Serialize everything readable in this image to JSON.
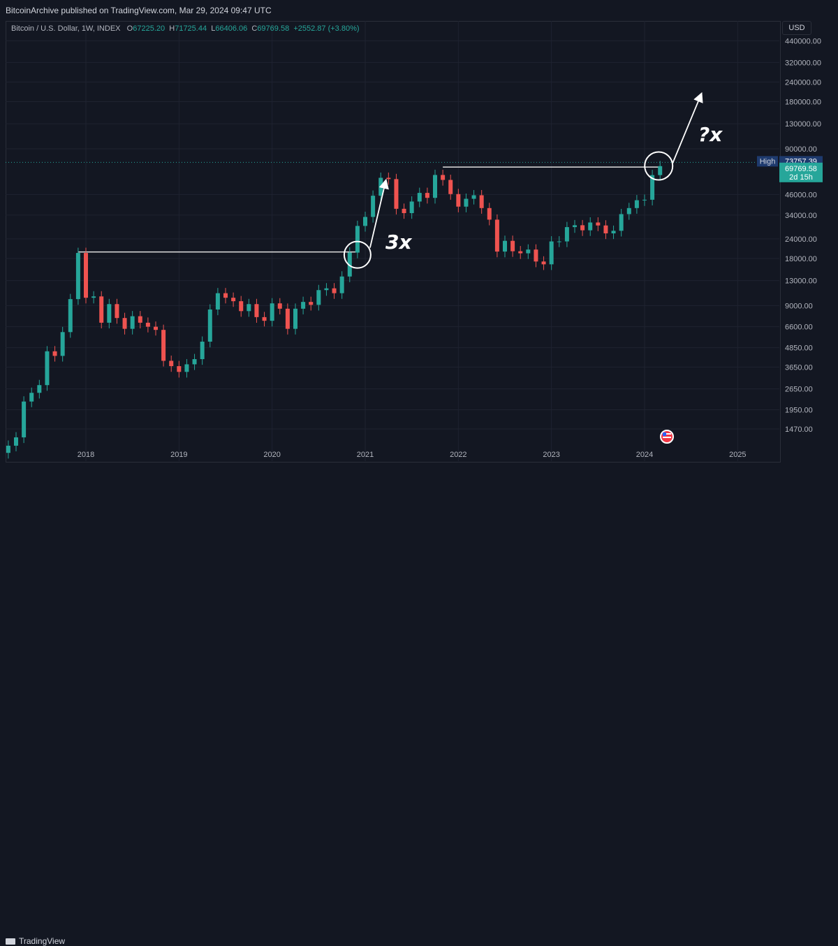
{
  "header": {
    "published": "BitcoinArchive published on TradingView.com, Mar 29, 2024 09:47 UTC"
  },
  "legend": {
    "symbol": "Bitcoin / U.S. Dollar, 1W, INDEX",
    "o_label": "O",
    "o_value": "67225.20",
    "h_label": "H",
    "h_value": "71725.44",
    "l_label": "L",
    "l_value": "66406.06",
    "c_label": "C",
    "c_value": "69769.58",
    "change": "+2552.87 (+3.80%)"
  },
  "currency": "USD",
  "price_labels": {
    "high_label": "High",
    "high_value": "73757.39",
    "last_value": "69769.58",
    "countdown": "2d 15h"
  },
  "annotations": {
    "left_multiplier": "3x",
    "right_multiplier": "?x"
  },
  "footer": {
    "brand": "TradingView"
  },
  "colors": {
    "up": "#26a69a",
    "down": "#ef5350",
    "background": "#131722",
    "annotation": "#ffffff"
  },
  "icons": {
    "event_marker": "us-flag-icon",
    "logo": "tradingview-logo-icon"
  },
  "chart_data": {
    "type": "candlestick",
    "title": "Bitcoin / U.S. Dollar, 1W, INDEX",
    "y_scale": "log",
    "y_ticks": [
      "440000.00",
      "320000.00",
      "240000.00",
      "180000.00",
      "130000.00",
      "90000.00",
      "46000.00",
      "34000.00",
      "24000.00",
      "18000.00",
      "13000.00",
      "9000.00",
      "6600.00",
      "4850.00",
      "3650.00",
      "2650.00",
      "1950.00",
      "1470.00"
    ],
    "x_ticks": [
      "2018",
      "2019",
      "2020",
      "2021",
      "2022",
      "2023",
      "2024",
      "2025"
    ],
    "xlim": [
      "2017-03",
      "2025-09"
    ],
    "ylim": [
      1300,
      560000
    ],
    "series": [
      {
        "values": [
          [
            "2017-03",
            1150
          ],
          [
            "2017-04",
            1300
          ],
          [
            "2017-05",
            2200
          ],
          [
            "2017-06",
            2500
          ],
          [
            "2017-07",
            2800
          ],
          [
            "2017-08",
            4600
          ],
          [
            "2017-09",
            4300
          ],
          [
            "2017-10",
            6100
          ],
          [
            "2017-11",
            9900
          ],
          [
            "2017-12",
            19500
          ],
          [
            "2018-01",
            10100
          ],
          [
            "2018-02",
            10300
          ],
          [
            "2018-03",
            7000
          ],
          [
            "2018-04",
            9200
          ],
          [
            "2018-05",
            7500
          ],
          [
            "2018-06",
            6400
          ],
          [
            "2018-07",
            7700
          ],
          [
            "2018-08",
            7000
          ],
          [
            "2018-09",
            6600
          ],
          [
            "2018-10",
            6300
          ],
          [
            "2018-11",
            4000
          ],
          [
            "2018-12",
            3700
          ],
          [
            "2019-01",
            3400
          ],
          [
            "2019-02",
            3800
          ],
          [
            "2019-03",
            4100
          ],
          [
            "2019-04",
            5300
          ],
          [
            "2019-05",
            8500
          ],
          [
            "2019-06",
            10800
          ],
          [
            "2019-07",
            10100
          ],
          [
            "2019-08",
            9600
          ],
          [
            "2019-09",
            8300
          ],
          [
            "2019-10",
            9200
          ],
          [
            "2019-11",
            7600
          ],
          [
            "2019-12",
            7200
          ],
          [
            "2020-01",
            9300
          ],
          [
            "2020-02",
            8600
          ],
          [
            "2020-03",
            6400
          ],
          [
            "2020-04",
            8600
          ],
          [
            "2020-05",
            9500
          ],
          [
            "2020-06",
            9100
          ],
          [
            "2020-07",
            11300
          ],
          [
            "2020-08",
            11600
          ],
          [
            "2020-09",
            10800
          ],
          [
            "2020-10",
            13800
          ],
          [
            "2020-11",
            19600
          ],
          [
            "2020-12",
            29000
          ],
          [
            "2021-01",
            33100
          ],
          [
            "2021-02",
            45200
          ],
          [
            "2021-03",
            58800
          ],
          [
            "2021-04",
            57700
          ],
          [
            "2021-05",
            37300
          ],
          [
            "2021-06",
            35000
          ],
          [
            "2021-07",
            41500
          ],
          [
            "2021-08",
            47100
          ],
          [
            "2021-09",
            43800
          ],
          [
            "2021-10",
            61300
          ],
          [
            "2021-11",
            57000
          ],
          [
            "2021-12",
            46300
          ],
          [
            "2022-01",
            38500
          ],
          [
            "2022-02",
            43200
          ],
          [
            "2022-03",
            45500
          ],
          [
            "2022-04",
            37700
          ],
          [
            "2022-05",
            31800
          ],
          [
            "2022-06",
            19900
          ],
          [
            "2022-07",
            23300
          ],
          [
            "2022-08",
            20000
          ],
          [
            "2022-09",
            19400
          ],
          [
            "2022-10",
            20500
          ],
          [
            "2022-11",
            17200
          ],
          [
            "2022-12",
            16500
          ],
          [
            "2023-01",
            23100
          ],
          [
            "2023-02",
            23100
          ],
          [
            "2023-03",
            28500
          ],
          [
            "2023-04",
            29300
          ],
          [
            "2023-05",
            27200
          ],
          [
            "2023-06",
            30500
          ],
          [
            "2023-07",
            29200
          ],
          [
            "2023-08",
            26000
          ],
          [
            "2023-09",
            27000
          ],
          [
            "2023-10",
            34500
          ],
          [
            "2023-11",
            37700
          ],
          [
            "2023-12",
            42300
          ],
          [
            "2024-01",
            42600
          ],
          [
            "2024-02",
            61200
          ],
          [
            "2024-03",
            69800
          ]
        ]
      }
    ],
    "high_line": 73757.39,
    "last_close": 69769.58,
    "resistance_lines": [
      {
        "from": "2017-12",
        "to": "2020-12",
        "value": 19800
      },
      {
        "from": "2021-11",
        "to": "2024-03",
        "value": 68800
      }
    ]
  }
}
